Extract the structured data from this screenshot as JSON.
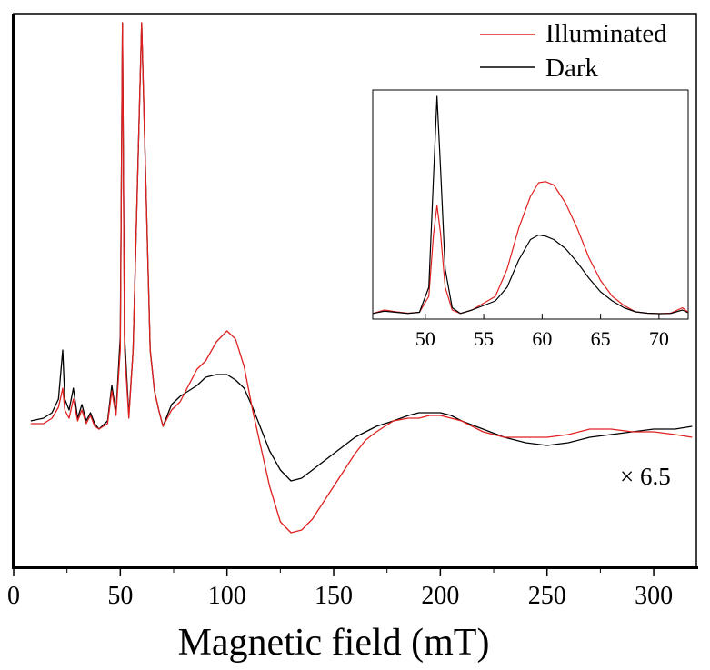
{
  "chart_data": {
    "type": "line",
    "xlabel": "Magnetic field (mT)",
    "ylabel": "",
    "xlim": [
      0,
      320
    ],
    "xticks": [
      0,
      50,
      100,
      150,
      200,
      250,
      300
    ],
    "y_ticks_labeled": false,
    "legend": {
      "placement": "top-right"
    },
    "annotation": "× 6.5",
    "series": [
      {
        "name": "Illuminated",
        "color": "#e02020",
        "points": [
          [
            8,
            0.03
          ],
          [
            14,
            0.03
          ],
          [
            18,
            0.05
          ],
          [
            21,
            0.09
          ],
          [
            23,
            0.16
          ],
          [
            24,
            0.08
          ],
          [
            26,
            0.05
          ],
          [
            28,
            0.12
          ],
          [
            30,
            0.04
          ],
          [
            32,
            0.08
          ],
          [
            34,
            0.03
          ],
          [
            36,
            0.06
          ],
          [
            38,
            0.02
          ],
          [
            40,
            0.01
          ],
          [
            44,
            0.03
          ],
          [
            46,
            0.15
          ],
          [
            48,
            0.06
          ],
          [
            50,
            0.3
          ],
          [
            51,
            1.5
          ],
          [
            52,
            0.3
          ],
          [
            54,
            0.05
          ],
          [
            56,
            0.3
          ],
          [
            58,
            0.9
          ],
          [
            60,
            1.5
          ],
          [
            62,
            0.9
          ],
          [
            64,
            0.3
          ],
          [
            66,
            0.15
          ],
          [
            68,
            0.08
          ],
          [
            70,
            0.02
          ],
          [
            72,
            0.05
          ],
          [
            74,
            0.08
          ],
          [
            78,
            0.11
          ],
          [
            82,
            0.17
          ],
          [
            86,
            0.23
          ],
          [
            90,
            0.26
          ],
          [
            95,
            0.33
          ],
          [
            100,
            0.37
          ],
          [
            104,
            0.34
          ],
          [
            108,
            0.24
          ],
          [
            112,
            0.08
          ],
          [
            116,
            -0.06
          ],
          [
            120,
            -0.2
          ],
          [
            125,
            -0.33
          ],
          [
            130,
            -0.37
          ],
          [
            135,
            -0.36
          ],
          [
            140,
            -0.32
          ],
          [
            145,
            -0.26
          ],
          [
            150,
            -0.2
          ],
          [
            155,
            -0.14
          ],
          [
            160,
            -0.08
          ],
          [
            165,
            -0.03
          ],
          [
            170,
            0.0
          ],
          [
            178,
            0.04
          ],
          [
            185,
            0.05
          ],
          [
            190,
            0.05
          ],
          [
            195,
            0.06
          ],
          [
            200,
            0.06
          ],
          [
            205,
            0.05
          ],
          [
            210,
            0.04
          ],
          [
            220,
            0.0
          ],
          [
            230,
            -0.02
          ],
          [
            240,
            -0.02
          ],
          [
            250,
            -0.02
          ],
          [
            260,
            -0.01
          ],
          [
            270,
            0.01
          ],
          [
            280,
            0.01
          ],
          [
            290,
            0.0
          ],
          [
            300,
            0.0
          ],
          [
            310,
            -0.01
          ],
          [
            318,
            -0.02
          ]
        ]
      },
      {
        "name": "Dark",
        "color": "#000000",
        "points": [
          [
            8,
            0.04
          ],
          [
            14,
            0.05
          ],
          [
            18,
            0.07
          ],
          [
            21,
            0.12
          ],
          [
            23,
            0.3
          ],
          [
            24,
            0.12
          ],
          [
            26,
            0.08
          ],
          [
            28,
            0.16
          ],
          [
            30,
            0.05
          ],
          [
            32,
            0.1
          ],
          [
            34,
            0.04
          ],
          [
            36,
            0.07
          ],
          [
            38,
            0.03
          ],
          [
            40,
            0.01
          ],
          [
            44,
            0.04
          ],
          [
            46,
            0.17
          ],
          [
            48,
            0.07
          ],
          [
            50,
            0.35
          ],
          [
            51,
            1.5
          ],
          [
            52,
            0.35
          ],
          [
            54,
            0.06
          ],
          [
            56,
            0.3
          ],
          [
            58,
            0.9
          ],
          [
            60,
            1.5
          ],
          [
            62,
            0.9
          ],
          [
            64,
            0.3
          ],
          [
            66,
            0.15
          ],
          [
            68,
            0.08
          ],
          [
            70,
            0.02
          ],
          [
            72,
            0.06
          ],
          [
            74,
            0.1
          ],
          [
            78,
            0.13
          ],
          [
            82,
            0.15
          ],
          [
            86,
            0.17
          ],
          [
            90,
            0.2
          ],
          [
            95,
            0.21
          ],
          [
            100,
            0.21
          ],
          [
            104,
            0.19
          ],
          [
            108,
            0.16
          ],
          [
            112,
            0.09
          ],
          [
            116,
            0.01
          ],
          [
            120,
            -0.07
          ],
          [
            125,
            -0.14
          ],
          [
            130,
            -0.18
          ],
          [
            135,
            -0.17
          ],
          [
            140,
            -0.14
          ],
          [
            145,
            -0.11
          ],
          [
            150,
            -0.08
          ],
          [
            155,
            -0.05
          ],
          [
            160,
            -0.02
          ],
          [
            165,
            0.0
          ],
          [
            170,
            0.02
          ],
          [
            178,
            0.04
          ],
          [
            185,
            0.06
          ],
          [
            190,
            0.07
          ],
          [
            195,
            0.07
          ],
          [
            200,
            0.07
          ],
          [
            205,
            0.06
          ],
          [
            210,
            0.04
          ],
          [
            220,
            0.01
          ],
          [
            230,
            -0.02
          ],
          [
            240,
            -0.04
          ],
          [
            250,
            -0.05
          ],
          [
            260,
            -0.04
          ],
          [
            270,
            -0.02
          ],
          [
            280,
            -0.01
          ],
          [
            290,
            0.0
          ],
          [
            300,
            0.01
          ],
          [
            310,
            0.01
          ],
          [
            318,
            0.02
          ]
        ]
      }
    ],
    "inset": {
      "type": "line",
      "xlim": [
        45.5,
        72.5
      ],
      "xticks": [
        50,
        55,
        60,
        65,
        70
      ],
      "ylim": [
        0,
        1
      ],
      "series": [
        {
          "name": "Illuminated",
          "color": "#e02020",
          "points": [
            [
              45.5,
              0.005
            ],
            [
              46.5,
              0.02
            ],
            [
              47.5,
              0.012
            ],
            [
              48.5,
              0.006
            ],
            [
              49.5,
              0.01
            ],
            [
              50.3,
              0.08
            ],
            [
              50.7,
              0.35
            ],
            [
              51.0,
              0.48
            ],
            [
              51.3,
              0.36
            ],
            [
              51.7,
              0.12
            ],
            [
              52.3,
              0.02
            ],
            [
              53,
              0.005
            ],
            [
              54,
              0.02
            ],
            [
              55,
              0.05
            ],
            [
              56,
              0.08
            ],
            [
              57,
              0.2
            ],
            [
              58,
              0.38
            ],
            [
              59,
              0.52
            ],
            [
              59.7,
              0.58
            ],
            [
              60.3,
              0.585
            ],
            [
              61,
              0.57
            ],
            [
              62,
              0.49
            ],
            [
              63,
              0.38
            ],
            [
              64,
              0.25
            ],
            [
              65,
              0.15
            ],
            [
              66,
              0.08
            ],
            [
              67,
              0.04
            ],
            [
              68,
              0.012
            ],
            [
              69,
              0.006
            ],
            [
              70,
              0.004
            ],
            [
              71,
              0.006
            ],
            [
              72,
              0.03
            ],
            [
              72.5,
              0.01
            ]
          ]
        },
        {
          "name": "Dark",
          "color": "#000000",
          "points": [
            [
              45.5,
              0.005
            ],
            [
              46.5,
              0.015
            ],
            [
              47.5,
              0.01
            ],
            [
              48.5,
              0.005
            ],
            [
              49.5,
              0.01
            ],
            [
              50.3,
              0.12
            ],
            [
              50.7,
              0.6
            ],
            [
              51.0,
              0.96
            ],
            [
              51.3,
              0.65
            ],
            [
              51.7,
              0.2
            ],
            [
              52.3,
              0.03
            ],
            [
              53,
              0.005
            ],
            [
              54,
              0.02
            ],
            [
              55,
              0.04
            ],
            [
              56,
              0.06
            ],
            [
              57,
              0.12
            ],
            [
              58,
              0.24
            ],
            [
              59,
              0.33
            ],
            [
              59.7,
              0.35
            ],
            [
              60.3,
              0.345
            ],
            [
              61,
              0.33
            ],
            [
              62,
              0.29
            ],
            [
              63,
              0.23
            ],
            [
              64,
              0.16
            ],
            [
              65,
              0.1
            ],
            [
              66,
              0.06
            ],
            [
              67,
              0.03
            ],
            [
              68,
              0.012
            ],
            [
              69,
              0.006
            ],
            [
              70,
              0.004
            ],
            [
              71,
              0.005
            ],
            [
              72,
              0.02
            ],
            [
              72.5,
              0.008
            ]
          ]
        }
      ]
    }
  }
}
